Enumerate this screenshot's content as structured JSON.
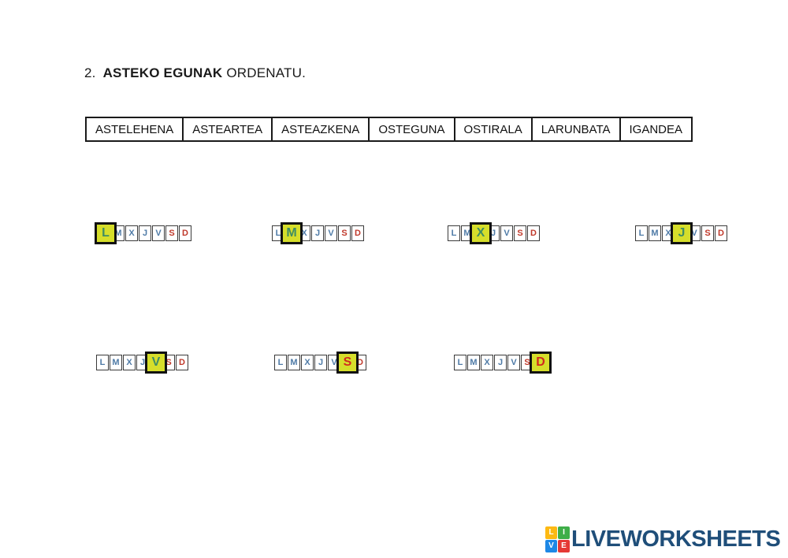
{
  "title": {
    "number": "2.",
    "bold_text": "ASTEKO EGUNAK",
    "normal_text": " ORDENATU."
  },
  "days_table": {
    "cells": [
      "ASTELEHENA",
      "ASTEARTEA",
      "ASTEAZKENA",
      "OSTEGUNA",
      "OSTIRALA",
      "LARUNBATA",
      "IGANDEA"
    ]
  },
  "letter_groups": {
    "letters": [
      "L",
      "M",
      "X",
      "J",
      "V",
      "S",
      "D"
    ],
    "weekend_letters": [
      "S",
      "D"
    ],
    "colors": {
      "weekday_letter": "#4f7ba7",
      "weekend_letter": "#c0392b",
      "selected_background": "#d6de2b",
      "selected_weekday_letter": "#3f8d63",
      "selected_weekend_letter": "#d02a1e",
      "box_border": "#3a3a3a",
      "selected_border": "#111111"
    },
    "rows": [
      {
        "groups": [
          {
            "selected_letter": "L"
          },
          {
            "selected_letter": "M"
          },
          {
            "selected_letter": "X"
          },
          {
            "selected_letter": "J"
          }
        ]
      },
      {
        "groups": [
          {
            "selected_letter": "V"
          },
          {
            "selected_letter": "S"
          },
          {
            "selected_letter": "D"
          }
        ]
      }
    ]
  },
  "logo": {
    "text": "LIVEWORKSHEETS",
    "text_color": "#1f4e79",
    "tiles": [
      {
        "letter": "L",
        "color": "#fdb913"
      },
      {
        "letter": "I",
        "color": "#3fae49"
      },
      {
        "letter": "V",
        "color": "#1e88e5"
      },
      {
        "letter": "E",
        "color": "#e53935"
      }
    ]
  }
}
